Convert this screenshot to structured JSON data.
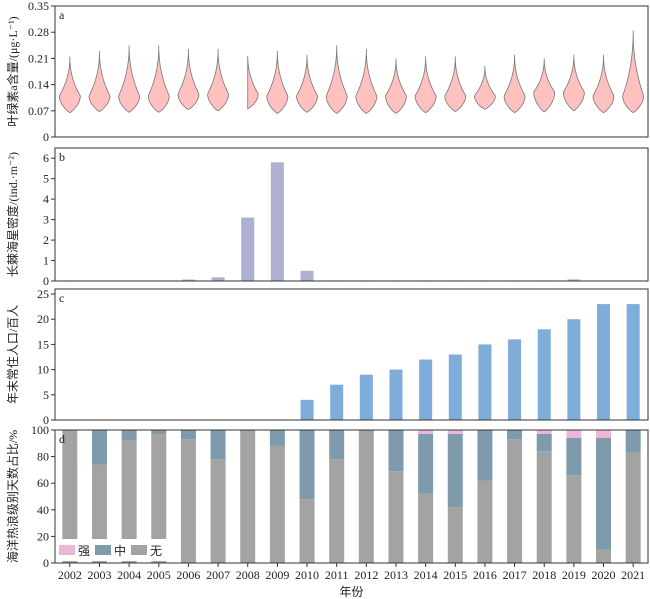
{
  "chart_data": [
    {
      "panel": "a",
      "type": "violin",
      "ylabel": "叶绿素a含量/(μg·L⁻¹)",
      "yticks": [
        "0",
        "0.07",
        "0.14",
        "0.21",
        "0.28",
        "0.35"
      ],
      "ylim": [
        0,
        0.35
      ],
      "x": [
        "2002",
        "2003",
        "2004",
        "2005",
        "2006",
        "2007",
        "2008",
        "2009",
        "2010",
        "2011",
        "2012",
        "2013",
        "2014",
        "2015",
        "2016",
        "2017",
        "2018",
        "2019",
        "2020",
        "2021"
      ],
      "min": [
        0.065,
        0.068,
        0.066,
        0.066,
        0.073,
        0.07,
        0.075,
        0.063,
        0.066,
        0.063,
        0.063,
        0.063,
        0.065,
        0.068,
        0.074,
        0.065,
        0.067,
        0.07,
        0.065,
        0.065
      ],
      "max": [
        0.215,
        0.23,
        0.245,
        0.245,
        0.235,
        0.235,
        0.22,
        0.23,
        0.22,
        0.245,
        0.235,
        0.21,
        0.215,
        0.215,
        0.19,
        0.22,
        0.21,
        0.22,
        0.22,
        0.285
      ],
      "mode": [
        0.11,
        0.11,
        0.11,
        0.11,
        0.115,
        0.115,
        0.115,
        0.11,
        0.11,
        0.11,
        0.11,
        0.11,
        0.11,
        0.11,
        0.11,
        0.11,
        0.12,
        0.12,
        0.11,
        0.11
      ],
      "color": "#ffc0c0"
    },
    {
      "panel": "b",
      "type": "bar",
      "ylabel": "长棘海星密度/(ind.·m⁻²)",
      "yticks": [
        "0",
        "1",
        "2",
        "3",
        "4",
        "5",
        "6"
      ],
      "ylim": [
        0,
        6.5
      ],
      "values": [
        0.03,
        0,
        0,
        0,
        0.07,
        0.18,
        3.1,
        5.8,
        0.5,
        0.03,
        0.03,
        0.03,
        0.03,
        0.03,
        0.03,
        0.03,
        0.03,
        0.08,
        0,
        0
      ],
      "color": "#aeb0d2"
    },
    {
      "panel": "c",
      "type": "bar",
      "ylabel": "年末常住人口/百人",
      "yticks": [
        "0",
        "5",
        "10",
        "15",
        "20",
        "25"
      ],
      "ylim": [
        0,
        26
      ],
      "values": [
        0,
        0,
        0,
        0,
        0,
        0,
        0,
        0,
        4,
        7,
        9,
        10,
        12,
        13,
        15,
        16,
        18,
        20,
        23,
        23
      ],
      "color": "#7fadd9"
    },
    {
      "panel": "d",
      "type": "stacked_bar",
      "ylabel": "海洋热浪级别天数占比/%",
      "yticks": [
        "0",
        "20",
        "40",
        "60",
        "80",
        "100"
      ],
      "ylim": [
        0,
        100
      ],
      "xlabel": "年份",
      "series": [
        {
          "name": "无",
          "color": "#a3a3a3",
          "values": [
            100,
            74,
            92,
            97,
            93,
            78,
            100,
            88,
            48,
            78,
            100,
            69,
            52,
            42,
            62,
            93,
            84,
            66,
            10,
            83
          ]
        },
        {
          "name": "中",
          "color": "#7f9aab",
          "values": [
            0,
            26,
            8,
            3,
            7,
            22,
            0,
            12,
            52,
            22,
            0,
            31,
            45,
            55,
            38,
            7,
            13,
            28,
            84,
            17
          ]
        },
        {
          "name": "强",
          "color": "#e8b8d6",
          "values": [
            0,
            0,
            0,
            0,
            0,
            0,
            0,
            0,
            0,
            0,
            0,
            0,
            3,
            3,
            0,
            0,
            3,
            6,
            6,
            0
          ]
        }
      ]
    }
  ]
}
